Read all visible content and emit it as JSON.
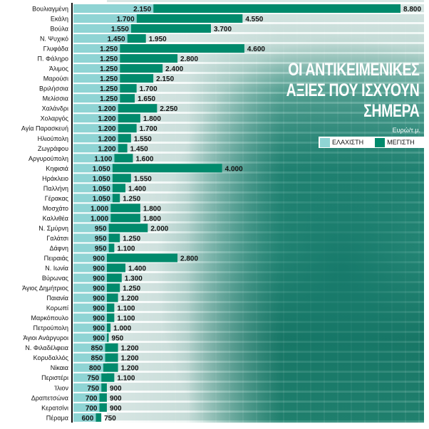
{
  "chart_data": {
    "type": "bar",
    "orientation": "horizontal",
    "title": "ΟΙ ΑΝΤΙΚΕΙΜΕΝΙΚΕΣ\nΑΞΙΕΣ ΠΟΥ ΙΣΧΥΟΥΝ\nΣΗΜΕΡΑ",
    "unit": "Ευρώ/τ.μ.",
    "legend_position": "right",
    "categories": [
      "Βουλιαγμένη",
      "Εκάλη",
      "Βούλα",
      "Ν. Ψυχικό",
      "Γλυφάδα",
      "Π. Φάληρο",
      "Άλιμος",
      "Μαρούσι",
      "Βριλήσσια",
      "Μελίσσια",
      "Χαλάνδρι",
      "Χολαργός",
      "Αγία Παρασκευή",
      "Ηλιούπολη",
      "Ζωγράφου",
      "Αργυρούπολη",
      "Κηφισιά",
      "Ηράκλειο",
      "Παλλήνη",
      "Γέρακας",
      "Μοσχάτο",
      "Καλλιθέα",
      "Ν. Σμύρνη",
      "Γαλάτσι",
      "Δάφνη",
      "Πειραιάς",
      "Ν. Ιωνία",
      "Βύρωνας",
      "Άγιος Δημήτριος",
      "Παιανία",
      "Κορωπί",
      "Μαρκόπουλο",
      "Πετρούπολη",
      "Άγιοι Ανάργυροι",
      "Ν. Φιλαδέλφεια",
      "Κορυδαλλός",
      "Νίκαια",
      "Περιστέρι",
      "Ίλιον",
      "Δραπετσώνα",
      "Κερατσίνι",
      "Πέραμα"
    ],
    "series": [
      {
        "name": "ΕΛΑΧΙΣΤΗ",
        "color": "#8fd4d4",
        "values": [
          2150,
          1700,
          1550,
          1450,
          1250,
          1250,
          1250,
          1250,
          1250,
          1250,
          1200,
          1200,
          1200,
          1200,
          1200,
          1100,
          1050,
          1050,
          1050,
          1050,
          1000,
          1000,
          950,
          950,
          950,
          900,
          900,
          900,
          900,
          900,
          900,
          900,
          900,
          900,
          850,
          850,
          800,
          750,
          750,
          700,
          700,
          600
        ]
      },
      {
        "name": "ΜΕΓΙΣΤΗ",
        "color": "#008a6c",
        "values": [
          8800,
          4550,
          3700,
          1950,
          4600,
          2800,
          2400,
          2150,
          1700,
          1650,
          2250,
          1800,
          1700,
          1550,
          1450,
          1600,
          4000,
          1550,
          1400,
          1250,
          1800,
          1800,
          2000,
          1250,
          1100,
          2800,
          1400,
          1300,
          1250,
          1200,
          1100,
          1100,
          1000,
          950,
          1200,
          1200,
          1200,
          1100,
          900,
          900,
          900,
          750
        ]
      }
    ],
    "xlim": [
      0,
      8800
    ],
    "grid": false
  }
}
